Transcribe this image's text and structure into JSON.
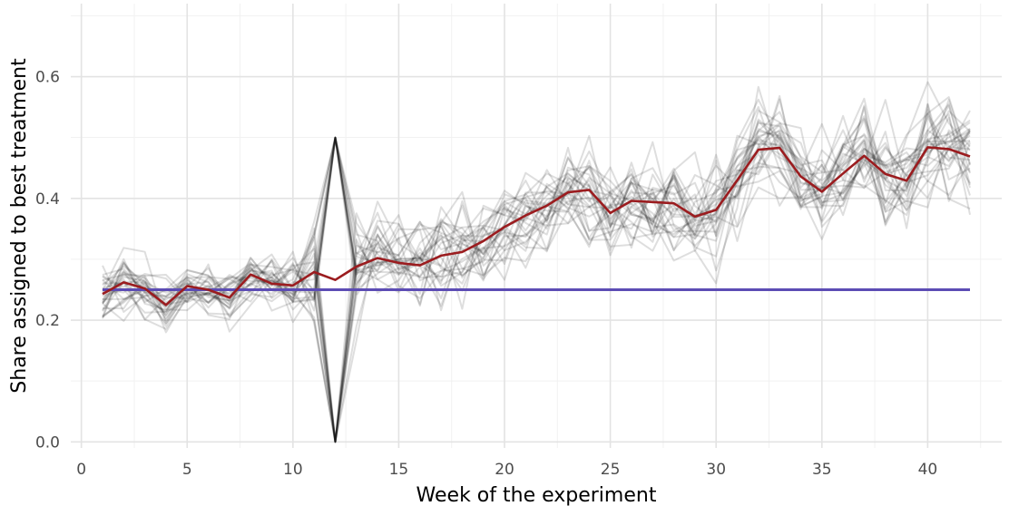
{
  "chart_data": {
    "type": "line",
    "xlabel": "Week of the experiment",
    "ylabel": "Share assigned to best treatment",
    "xlim": [
      -0.5,
      43.5
    ],
    "ylim": [
      -0.01,
      0.72
    ],
    "x_ticks": [
      "0",
      "5",
      "10",
      "15",
      "20",
      "25",
      "30",
      "35",
      "40"
    ],
    "y_ticks": [
      "0.0",
      "0.2",
      "0.4",
      "0.6"
    ],
    "grid": true,
    "x": [
      1,
      2,
      3,
      4,
      5,
      6,
      7,
      8,
      9,
      10,
      11,
      12,
      13,
      14,
      15,
      16,
      17,
      18,
      19,
      20,
      21,
      22,
      23,
      24,
      25,
      26,
      27,
      28,
      29,
      30,
      31,
      32,
      33,
      34,
      35,
      36,
      37,
      38,
      39,
      40,
      41,
      42
    ],
    "series": [
      {
        "role": "mean",
        "color": "#9b1c1f",
        "values": [
          0.243,
          0.262,
          0.252,
          0.225,
          0.256,
          0.25,
          0.237,
          0.275,
          0.26,
          0.257,
          0.279,
          0.266,
          0.288,
          0.302,
          0.294,
          0.29,
          0.306,
          0.312,
          0.33,
          0.353,
          0.372,
          0.388,
          0.41,
          0.414,
          0.376,
          0.396,
          0.394,
          0.392,
          0.37,
          0.381,
          0.43,
          0.48,
          0.483,
          0.436,
          0.411,
          0.441,
          0.47,
          0.44,
          0.429,
          0.484,
          0.481,
          0.469
        ]
      },
      {
        "role": "reference",
        "color": "#5c4cb4",
        "values": [
          0.25,
          0.25,
          0.25,
          0.25,
          0.25,
          0.25,
          0.25,
          0.25,
          0.25,
          0.25,
          0.25,
          0.25,
          0.25,
          0.25,
          0.25,
          0.25,
          0.25,
          0.25,
          0.25,
          0.25,
          0.25,
          0.25,
          0.25,
          0.25,
          0.25,
          0.25,
          0.25,
          0.25,
          0.25,
          0.25,
          0.25,
          0.25,
          0.25,
          0.25,
          0.25,
          0.25,
          0.25,
          0.25,
          0.25,
          0.25,
          0.25,
          0.25
        ]
      }
    ],
    "replicates": {
      "count": 30,
      "color": "#000000",
      "opacity": 0.13,
      "spike_week": 12,
      "spike_values": [
        0.0,
        0.5
      ]
    },
    "colors": {
      "grid_major": "#e3e3e3",
      "grid_minor": "#f1f1f1"
    }
  }
}
